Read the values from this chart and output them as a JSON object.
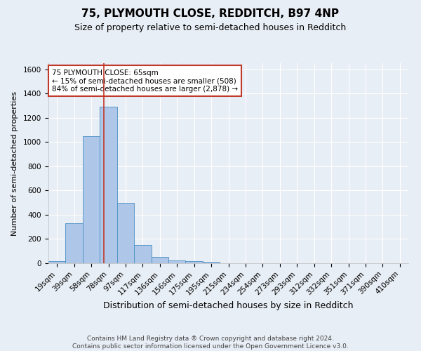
{
  "title": "75, PLYMOUTH CLOSE, REDDITCH, B97 4NP",
  "subtitle": "Size of property relative to semi-detached houses in Redditch",
  "xlabel": "Distribution of semi-detached houses by size in Redditch",
  "ylabel": "Number of semi-detached properties",
  "footer_line1": "Contains HM Land Registry data ® Crown copyright and database right 2024.",
  "footer_line2": "Contains public sector information licensed under the Open Government Licence v3.0.",
  "bar_labels": [
    "19sqm",
    "39sqm",
    "58sqm",
    "78sqm",
    "97sqm",
    "117sqm",
    "136sqm",
    "156sqm",
    "175sqm",
    "195sqm",
    "215sqm",
    "234sqm",
    "254sqm",
    "273sqm",
    "293sqm",
    "312sqm",
    "332sqm",
    "351sqm",
    "371sqm",
    "390sqm",
    "410sqm"
  ],
  "bar_values": [
    15,
    330,
    1050,
    1290,
    500,
    150,
    50,
    25,
    15,
    10,
    0,
    0,
    0,
    0,
    0,
    0,
    0,
    0,
    0,
    0,
    0
  ],
  "bar_color": "#aec6e8",
  "bar_edge_color": "#4a90c4",
  "bar_width": 1.0,
  "vline_x": 2.75,
  "vline_color": "#c0392b",
  "ylim": [
    0,
    1650
  ],
  "yticks": [
    0,
    200,
    400,
    600,
    800,
    1000,
    1200,
    1400,
    1600
  ],
  "annotation_text": "75 PLYMOUTH CLOSE: 65sqm\n← 15% of semi-detached houses are smaller (508)\n84% of semi-detached houses are larger (2,878) →",
  "annotation_box_color": "#ffffff",
  "annotation_box_edge": "#c0392b",
  "bg_color": "#e8eef5",
  "plot_bg_color": "#e8eef5",
  "grid_color": "#ffffff",
  "title_fontsize": 11,
  "subtitle_fontsize": 9,
  "xlabel_fontsize": 9,
  "ylabel_fontsize": 8,
  "tick_fontsize": 7.5,
  "footer_fontsize": 6.5
}
